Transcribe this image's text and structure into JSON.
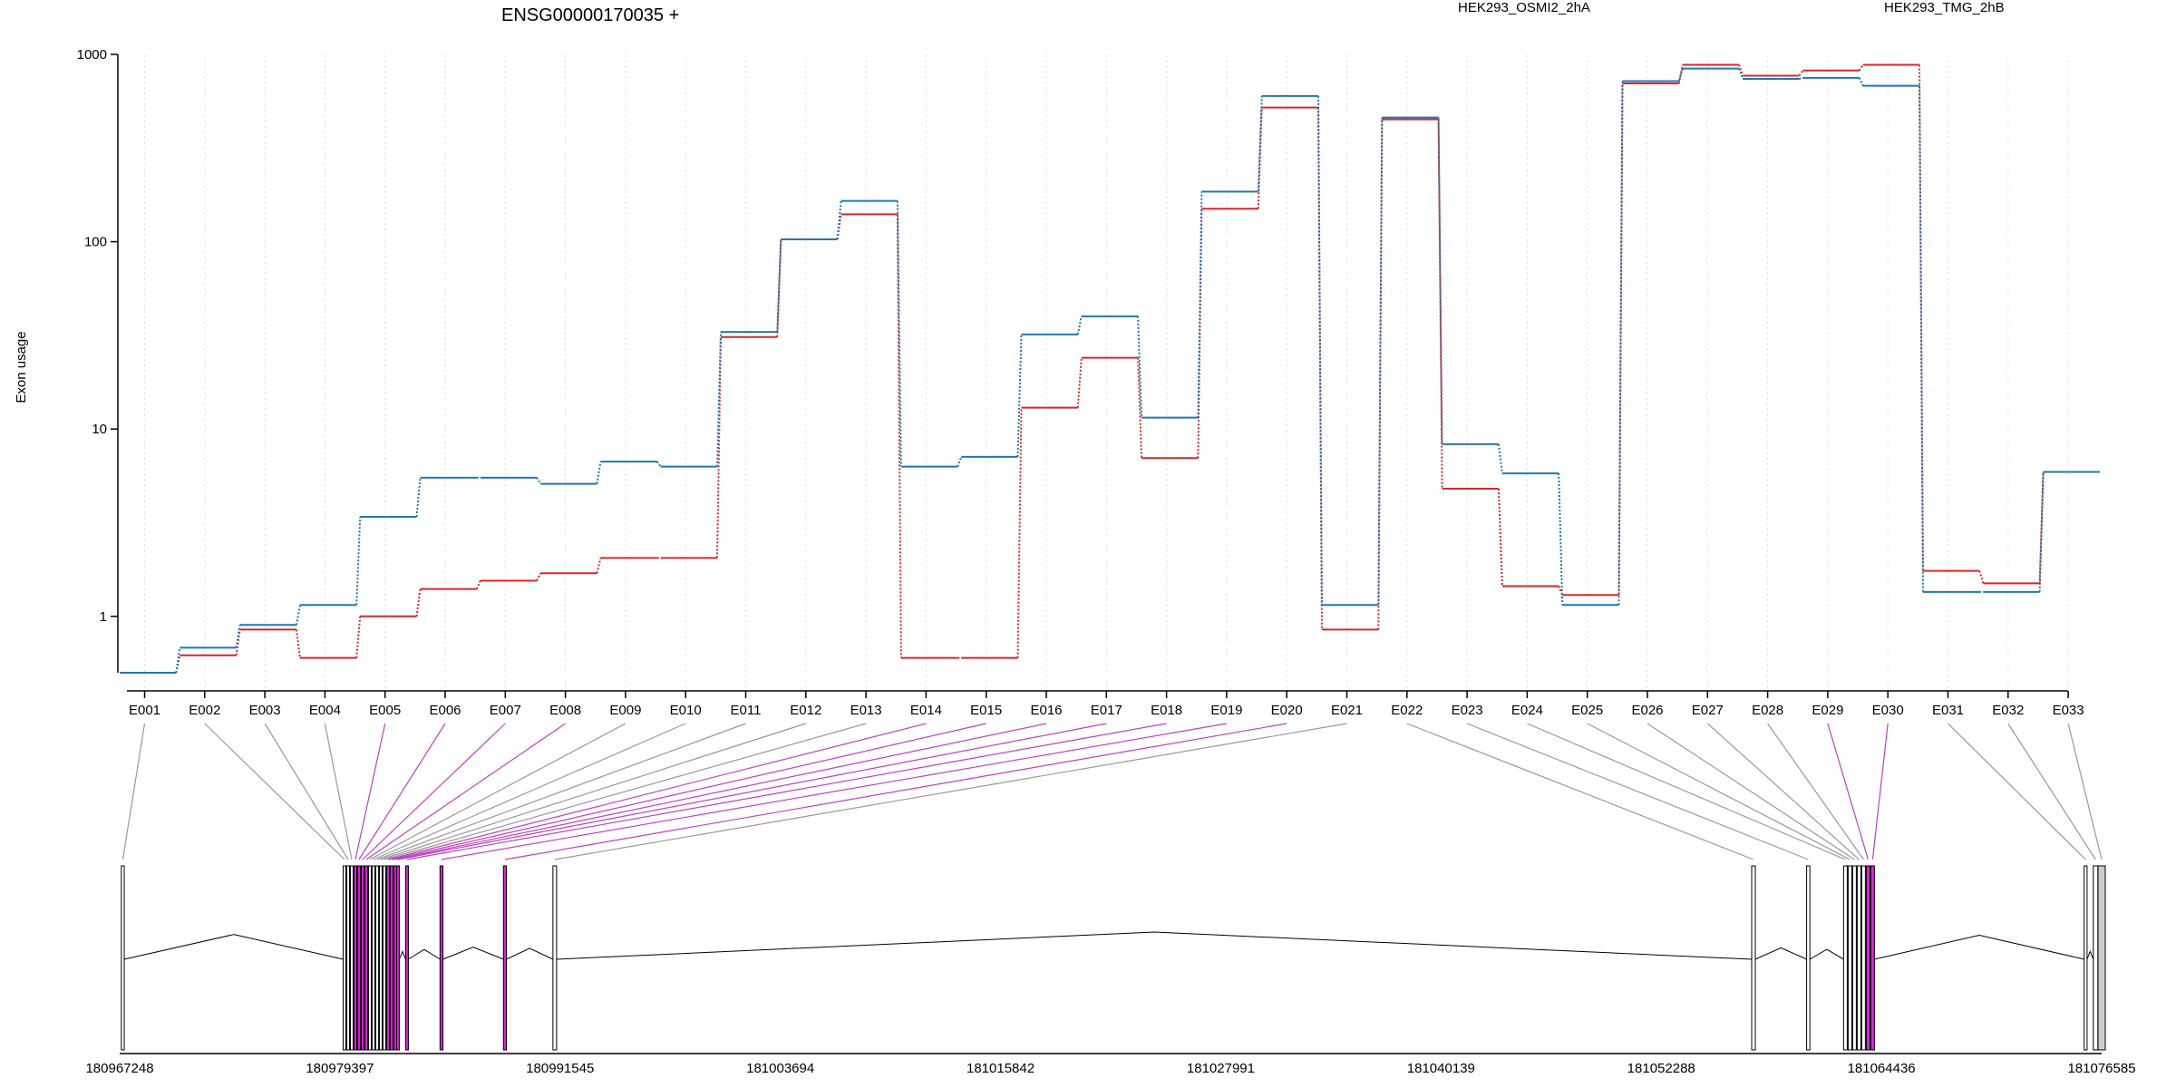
{
  "chart_data": {
    "type": "line",
    "title": "ENSG00000170035 +",
    "ylabel": "Exon usage",
    "xlabel": "",
    "yscale": "log",
    "ylim": [
      0.5,
      1000
    ],
    "y_ticks": [
      "1",
      "10",
      "100",
      "1000"
    ],
    "y_tick_values": [
      1,
      10,
      100,
      1000
    ],
    "categories": [
      "E001",
      "E002",
      "E003",
      "E004",
      "E005",
      "E006",
      "E007",
      "E008",
      "E009",
      "E010",
      "E011",
      "E012",
      "E013",
      "E014",
      "E015",
      "E016",
      "E017",
      "E018",
      "E019",
      "E020",
      "E021",
      "E022",
      "E023",
      "E024",
      "E025",
      "E026",
      "E027",
      "E028",
      "E029",
      "E030",
      "E031",
      "E032",
      "E033"
    ],
    "series": [
      {
        "name": "HEK293_OSMI2_2hA",
        "color": "#d62728",
        "values": [
          0.5,
          0.62,
          0.85,
          0.6,
          1.0,
          1.4,
          1.55,
          1.7,
          2.05,
          2.05,
          31,
          103,
          140,
          0.6,
          0.6,
          13,
          24,
          7,
          150,
          520,
          0.85,
          450,
          4.8,
          1.45,
          1.3,
          700,
          880,
          770,
          820,
          880,
          1.75,
          1.5,
          5.9
        ]
      },
      {
        "name": "HEK293_TMG_2hB",
        "color": "#1f77b4",
        "values": [
          0.5,
          0.68,
          0.9,
          1.15,
          3.4,
          5.5,
          5.5,
          5.1,
          6.7,
          6.3,
          33,
          103,
          165,
          6.3,
          7.1,
          32,
          40,
          11.5,
          185,
          600,
          1.15,
          460,
          8.3,
          5.8,
          1.15,
          720,
          840,
          740,
          750,
          680,
          1.35,
          1.35,
          5.9
        ]
      }
    ],
    "genomic_ticks": [
      "180967248",
      "180979397",
      "180991545",
      "181003694",
      "181015842",
      "181027991",
      "181040139",
      "181052288",
      "181064436",
      "181076585"
    ],
    "genomic_range": [
      180967248,
      181076585
    ],
    "highlighted_exons": [
      "E005",
      "E006",
      "E007",
      "E008",
      "E014",
      "E015",
      "E016",
      "E017",
      "E018",
      "E019",
      "E020",
      "E029",
      "E030"
    ],
    "colors": {
      "highlight": "#e21fe2",
      "exon_normal": "#ffffff",
      "exon_last": "#cccccc"
    },
    "exon_genomic_positions": [
      180967420,
      180979650,
      180979850,
      180980050,
      180980250,
      180980450,
      180980650,
      180980850,
      180981050,
      180981250,
      180981450,
      180981650,
      180981850,
      180982050,
      180982250,
      180982450,
      180982600,
      180983100,
      180985000,
      180988500,
      180991250,
      181057380,
      181060400,
      181062450,
      181062700,
      181062950,
      181063200,
      181063450,
      181063700,
      181063950,
      181075700,
      181076250,
      181076585
    ],
    "exon_widths_bp": [
      160,
      110,
      110,
      110,
      110,
      110,
      110,
      110,
      110,
      110,
      110,
      110,
      110,
      110,
      110,
      110,
      110,
      110,
      160,
      160,
      200,
      200,
      180,
      200,
      200,
      200,
      200,
      200,
      200,
      200,
      160,
      250,
      400
    ]
  }
}
